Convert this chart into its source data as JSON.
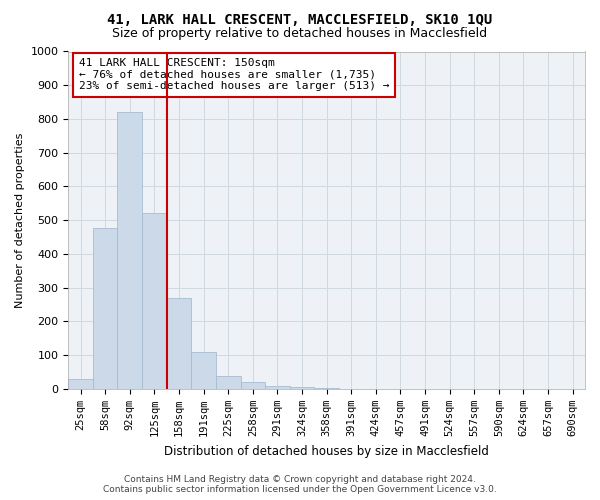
{
  "title": "41, LARK HALL CRESCENT, MACCLESFIELD, SK10 1QU",
  "subtitle": "Size of property relative to detached houses in Macclesfield",
  "xlabel": "Distribution of detached houses by size in Macclesfield",
  "ylabel": "Number of detached properties",
  "categories": [
    "25sqm",
    "58sqm",
    "92sqm",
    "125sqm",
    "158sqm",
    "191sqm",
    "225sqm",
    "258sqm",
    "291sqm",
    "324sqm",
    "358sqm",
    "391sqm",
    "424sqm",
    "457sqm",
    "491sqm",
    "524sqm",
    "557sqm",
    "590sqm",
    "624sqm",
    "657sqm",
    "690sqm"
  ],
  "values": [
    30,
    478,
    820,
    520,
    270,
    110,
    37,
    20,
    10,
    5,
    2,
    0,
    0,
    0,
    0,
    0,
    0,
    0,
    0,
    0,
    0
  ],
  "bar_color": "#ccd9e8",
  "bar_edge_color": "#a8bcd0",
  "vline_x": 3.5,
  "vline_color": "#cc0000",
  "annotation_title": "41 LARK HALL CRESCENT: 150sqm",
  "annotation_line1": "← 76% of detached houses are smaller (1,735)",
  "annotation_line2": "23% of semi-detached houses are larger (513) →",
  "annotation_box_color": "#cc0000",
  "ylim": [
    0,
    1000
  ],
  "yticks": [
    0,
    100,
    200,
    300,
    400,
    500,
    600,
    700,
    800,
    900,
    1000
  ],
  "grid_color": "#d0d8e0",
  "bg_color": "#eef2f7",
  "footer_line1": "Contains HM Land Registry data © Crown copyright and database right 2024.",
  "footer_line2": "Contains public sector information licensed under the Open Government Licence v3.0."
}
